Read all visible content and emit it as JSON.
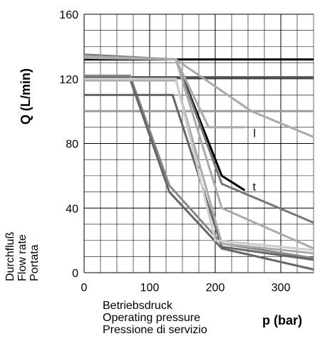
{
  "chart_data": {
    "type": "line",
    "ylabel": "Q (L/min)",
    "xlabel": "p (bar)",
    "y_description": [
      "Durchfluß",
      "Flow rate",
      "Portata"
    ],
    "x_description": [
      "Betriebsdruck",
      "Operating pressure",
      "Pressione di servizio"
    ],
    "xlim": [
      0,
      350
    ],
    "ylim": [
      0,
      160
    ],
    "xticks": [
      0,
      100,
      200,
      300
    ],
    "yticks": [
      0,
      40,
      80,
      120,
      160
    ],
    "grid": true,
    "annotations": [
      {
        "text": "l",
        "x": 258,
        "y": 84
      },
      {
        "text": "t",
        "x": 257,
        "y": 51
      }
    ],
    "series": [
      {
        "color": "#000000",
        "values": [
          [
            0,
            132
          ],
          [
            350,
            132
          ]
        ]
      },
      {
        "color": "#555555",
        "values": [
          [
            0,
            121
          ],
          [
            350,
            121
          ]
        ]
      },
      {
        "color": "#999999",
        "values": [
          [
            0,
            100
          ],
          [
            350,
            100
          ]
        ]
      },
      {
        "color": "#000000",
        "values": [
          [
            0,
            134
          ],
          [
            140,
            132
          ],
          [
            210,
            60
          ],
          [
            245,
            51
          ]
        ]
      },
      {
        "color": "#777777",
        "values": [
          [
            0,
            135
          ],
          [
            140,
            132
          ],
          [
            210,
            55
          ],
          [
            350,
            31
          ]
        ]
      },
      {
        "color": "#aaaaaa",
        "values": [
          [
            0,
            134
          ],
          [
            140,
            132
          ],
          [
            190,
            90
          ],
          [
            245,
            90
          ]
        ]
      },
      {
        "color": "#aaaaaa",
        "values": [
          [
            0,
            134
          ],
          [
            140,
            132
          ],
          [
            255,
            100
          ],
          [
            350,
            84
          ]
        ]
      },
      {
        "color": "#aaaaaa",
        "values": [
          [
            0,
            133
          ],
          [
            140,
            132
          ],
          [
            210,
            40
          ],
          [
            350,
            15
          ]
        ]
      },
      {
        "color": "#888888",
        "values": [
          [
            0,
            122
          ],
          [
            70,
            122
          ],
          [
            130,
            54
          ],
          [
            210,
            18
          ],
          [
            350,
            9
          ]
        ]
      },
      {
        "color": "#666666",
        "values": [
          [
            0,
            120
          ],
          [
            70,
            120
          ],
          [
            130,
            50
          ],
          [
            210,
            15
          ],
          [
            350,
            2
          ]
        ]
      },
      {
        "color": "#666666",
        "values": [
          [
            0,
            110
          ],
          [
            135,
            110
          ],
          [
            210,
            16
          ],
          [
            350,
            8
          ]
        ]
      },
      {
        "color": "#aaaaaa",
        "values": [
          [
            0,
            119
          ],
          [
            140,
            119
          ],
          [
            210,
            18
          ],
          [
            350,
            12
          ]
        ]
      },
      {
        "color": "#cccccc",
        "values": [
          [
            0,
            120
          ],
          [
            140,
            120
          ],
          [
            200,
            20
          ],
          [
            350,
            14
          ]
        ]
      }
    ]
  }
}
